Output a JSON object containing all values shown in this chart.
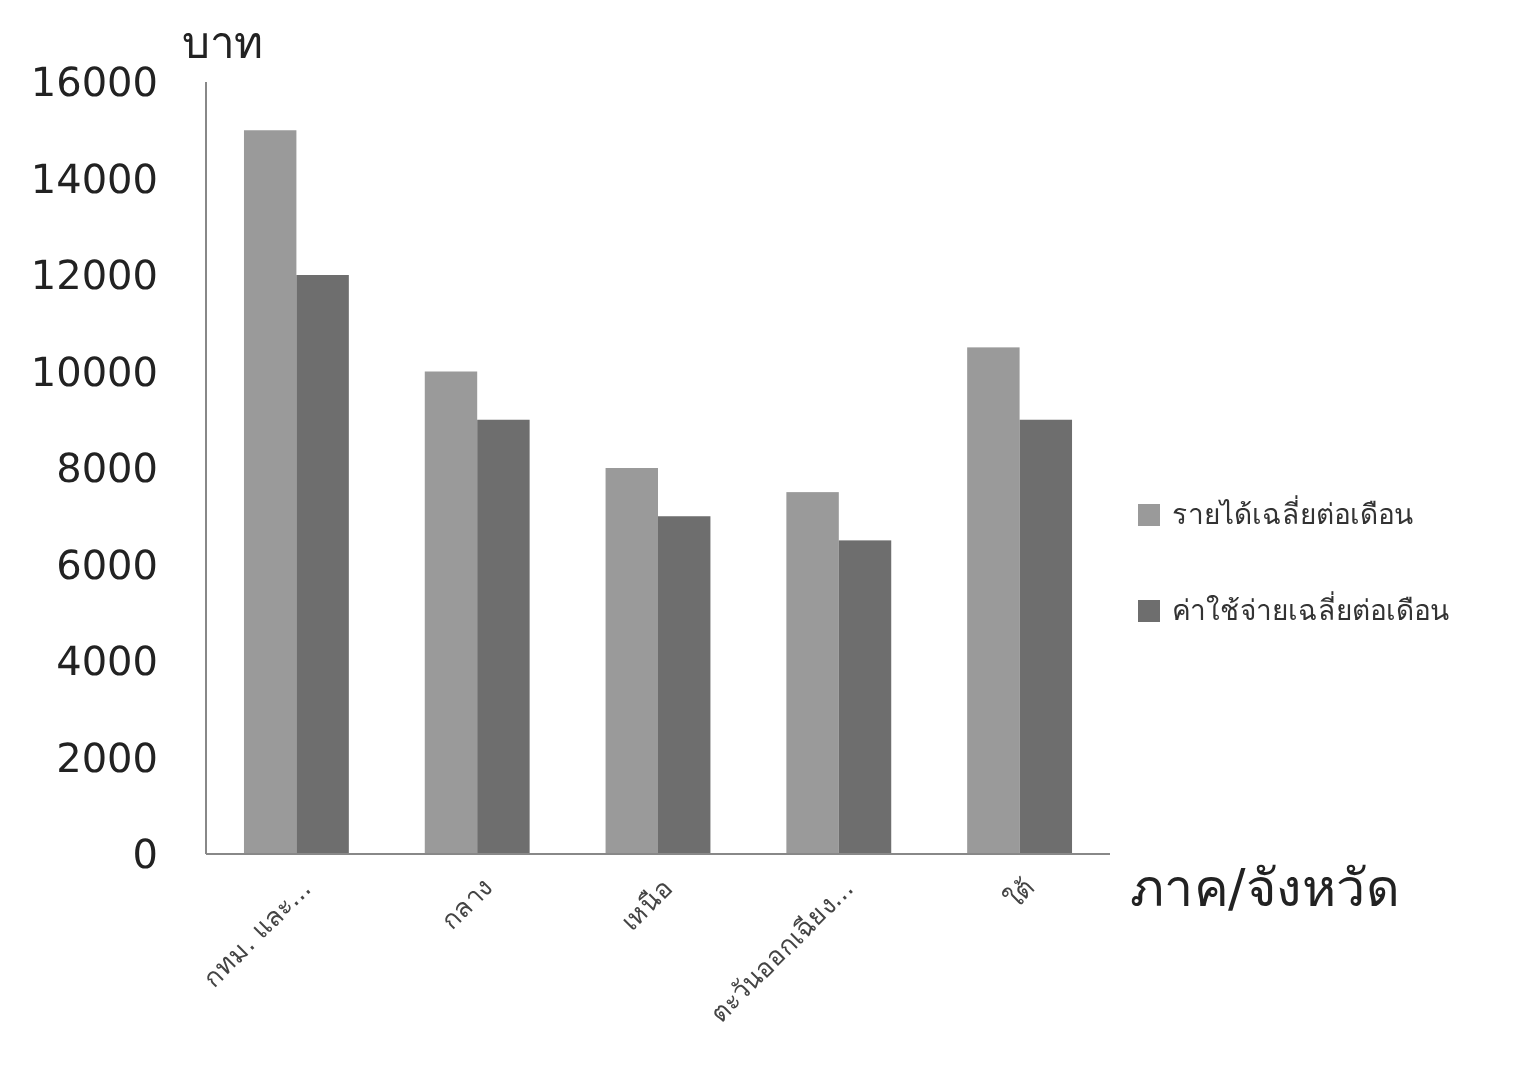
{
  "chart_data": {
    "type": "bar",
    "xlabel": "ภาค/จังหวัด",
    "ylabel": "บาท",
    "categories": [
      "กทม. และ...",
      "กลาง",
      "เหนือ",
      "ตะวันออกเฉียง...",
      "ใต้"
    ],
    "series": [
      {
        "name": "รายได้เฉลี่ยต่อเดือน",
        "color": "#9a9a9a",
        "values": [
          15000,
          10000,
          8000,
          7500,
          10500
        ]
      },
      {
        "name": "ค่าใช้จ่ายเฉลี่ยต่อเดือน",
        "color": "#6e6e6e",
        "values": [
          12000,
          9000,
          7000,
          6500,
          9000
        ]
      }
    ],
    "ylim": [
      0,
      16000
    ],
    "yticks": [
      0,
      2000,
      4000,
      6000,
      8000,
      10000,
      12000,
      14000,
      16000
    ],
    "grid": false,
    "legend": "right"
  }
}
